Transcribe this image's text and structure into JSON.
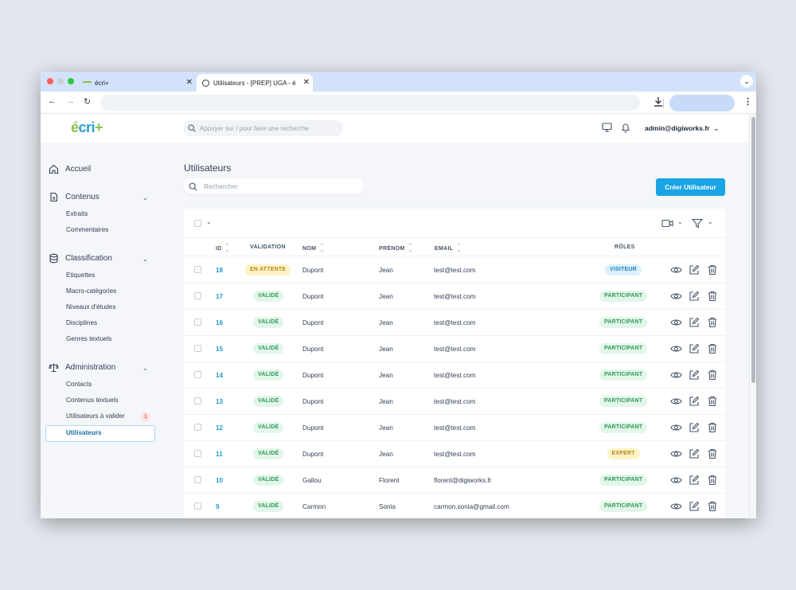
{
  "browser": {
    "tabs": [
      {
        "label": "écri+"
      },
      {
        "label": "Utilisateurs - [PREP] UGA - é"
      }
    ]
  },
  "header": {
    "logo": {
      "e": "é",
      "cri": "cri",
      "plus": "+"
    },
    "search_placeholder": "Appuyer sur / pour faire une recherche",
    "user": "admin@digiworks.fr"
  },
  "sidebar": {
    "accueil": "Accueil",
    "contenus": {
      "label": "Contenus",
      "items": [
        "Extraits",
        "Commentaires"
      ]
    },
    "classification": {
      "label": "Classification",
      "items": [
        "Etiquettes",
        "Macro-catégories",
        "Niveaux d'études",
        "Disciplines",
        "Genres textuels"
      ]
    },
    "administration": {
      "label": "Administration",
      "items": [
        "Contacts",
        "Contenus textuels",
        "Utilisateurs à valider",
        "Utilisateurs"
      ],
      "pending_count": "1"
    }
  },
  "main": {
    "title": "Utilisateurs",
    "search_placeholder": "Rechercher",
    "create_label": "Créer Utilisateur",
    "columns": {
      "id": "ID",
      "validation": "VALIDATION",
      "nom": "NOM",
      "prenom": "PRÉNOM",
      "email": "EMAIL",
      "roles": "RÔLES"
    },
    "rows": [
      {
        "id": "18",
        "validation": "EN ATTENTE",
        "nom": "Dupont",
        "prenom": "Jean",
        "email": "test@test.com",
        "role": "VISITEUR"
      },
      {
        "id": "17",
        "validation": "VALIDÉ",
        "nom": "Dupont",
        "prenom": "Jean",
        "email": "test@test.com",
        "role": "PARTICIPANT"
      },
      {
        "id": "16",
        "validation": "VALIDÉ",
        "nom": "Dupont",
        "prenom": "Jean",
        "email": "test@test.com",
        "role": "PARTICIPANT"
      },
      {
        "id": "15",
        "validation": "VALIDÉ",
        "nom": "Dupont",
        "prenom": "Jean",
        "email": "test@test.com",
        "role": "PARTICIPANT"
      },
      {
        "id": "14",
        "validation": "VALIDÉ",
        "nom": "Dupont",
        "prenom": "Jean",
        "email": "test@test.com",
        "role": "PARTICIPANT"
      },
      {
        "id": "13",
        "validation": "VALIDÉ",
        "nom": "Dupont",
        "prenom": "Jean",
        "email": "test@test.com",
        "role": "PARTICIPANT"
      },
      {
        "id": "12",
        "validation": "VALIDÉ",
        "nom": "Dupont",
        "prenom": "Jean",
        "email": "test@test.com",
        "role": "PARTICIPANT"
      },
      {
        "id": "11",
        "validation": "VALIDÉ",
        "nom": "Dupont",
        "prenom": "Jean",
        "email": "test@test.com",
        "role": "EXPERT"
      },
      {
        "id": "10",
        "validation": "VALIDÉ",
        "nom": "Gallou",
        "prenom": "Florent",
        "email": "florent@digiworks.fr",
        "role": "PARTICIPANT"
      },
      {
        "id": "9",
        "validation": "VALIDÉ",
        "nom": "Carmon",
        "prenom": "Sonia",
        "email": "carmon.sonia@gmail.com",
        "role": "PARTICIPANT"
      }
    ]
  },
  "icons": {
    "view": "eye-icon",
    "edit": "edit-icon",
    "delete": "trash-icon"
  },
  "colors": {
    "accent": "#19a4e4",
    "logo_blue": "#2a9fd6",
    "logo_green": "#8bc34a",
    "validated": "#2f9a56",
    "pending": "#b7871a"
  }
}
